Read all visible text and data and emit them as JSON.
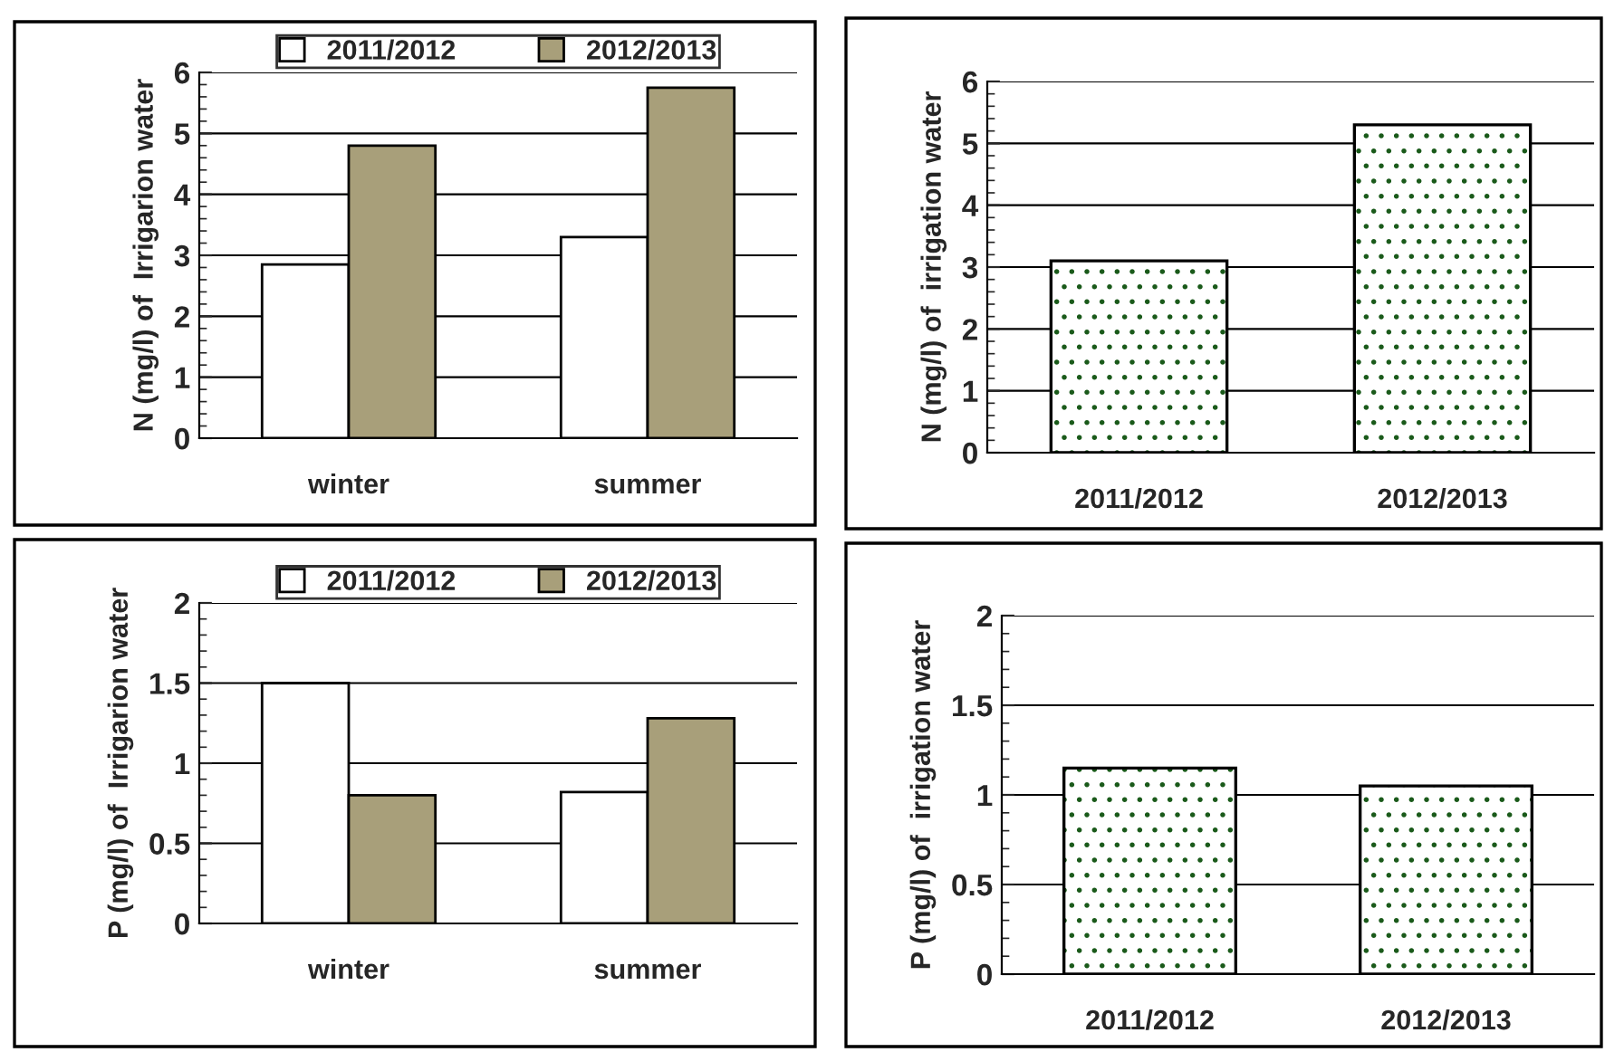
{
  "chart_data": [
    {
      "type": "bar",
      "ylabel": "N (mg/l) of  Irrigarion water",
      "categories": [
        "winter",
        "summer"
      ],
      "series": [
        {
          "name": "2011/2012",
          "color": "#ffffff",
          "values": [
            2.85,
            3.3
          ]
        },
        {
          "name": "2012/2013",
          "color": "#a89f7a",
          "values": [
            4.8,
            5.75
          ]
        }
      ],
      "ylim": [
        0,
        6
      ],
      "yticks": [
        0,
        1,
        2,
        3,
        4,
        5,
        6
      ],
      "grid": "y",
      "legend": "top"
    },
    {
      "type": "bar",
      "ylabel": "N (mg/l) of  irrigation water",
      "categories": [
        "2011/2012",
        "2012/2013"
      ],
      "series": [
        {
          "color": "#ffffff",
          "values": [
            3.1,
            5.3
          ]
        }
      ],
      "ylim": [
        0,
        6
      ],
      "yticks": [
        0,
        1,
        2,
        3,
        4,
        5,
        6
      ],
      "grid": "y"
    },
    {
      "type": "bar",
      "ylabel": "P (mg/l) of  Irrigarion water",
      "categories": [
        "winter",
        "summer"
      ],
      "series": [
        {
          "name": "2011/2012",
          "color": "#ffffff",
          "values": [
            1.5,
            0.82
          ]
        },
        {
          "name": "2012/2013",
          "color": "#a89f7a",
          "values": [
            0.8,
            1.28
          ]
        }
      ],
      "ylim": [
        0,
        2
      ],
      "yticks": [
        0,
        0.5,
        1,
        1.5,
        2
      ],
      "grid": "y",
      "legend": "top"
    },
    {
      "type": "bar",
      "ylabel": "P (mg/l) of  irrigation water",
      "categories": [
        "2011/2012",
        "2012/2013"
      ],
      "series": [
        {
          "color": "#ffffff",
          "values": [
            1.15,
            1.05
          ]
        }
      ],
      "ylim": [
        0,
        2
      ],
      "yticks": [
        0,
        0.5,
        1,
        1.5,
        2
      ],
      "grid": "y"
    }
  ]
}
